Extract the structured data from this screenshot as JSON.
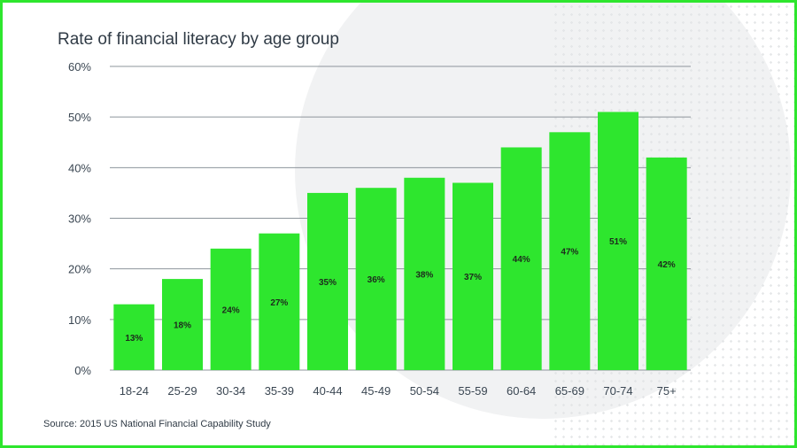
{
  "source_note": "Source: 2015 US National Financial Capability Study",
  "colors": {
    "bar": "#2ee62e",
    "border": "#2ee62e",
    "grid": "#8d949b",
    "text": "#2f3a45"
  },
  "chart_data": {
    "type": "bar",
    "title": "Rate of financial literacy by age group",
    "xlabel": "",
    "ylabel": "",
    "ylim": [
      0,
      60
    ],
    "y_ticks": [
      "0%",
      "10%",
      "20%",
      "30%",
      "40%",
      "50%",
      "60%"
    ],
    "grid": true,
    "categories": [
      "18-24",
      "25-29",
      "30-34",
      "35-39",
      "40-44",
      "45-49",
      "50-54",
      "55-59",
      "60-64",
      "65-69",
      "70-74",
      "75+"
    ],
    "values": [
      13,
      18,
      24,
      27,
      35,
      36,
      38,
      37,
      44,
      47,
      51,
      42
    ],
    "data_labels": [
      "13%",
      "18%",
      "24%",
      "27%",
      "35%",
      "36%",
      "38%",
      "37%",
      "44%",
      "47%",
      "51%",
      "42%"
    ]
  }
}
